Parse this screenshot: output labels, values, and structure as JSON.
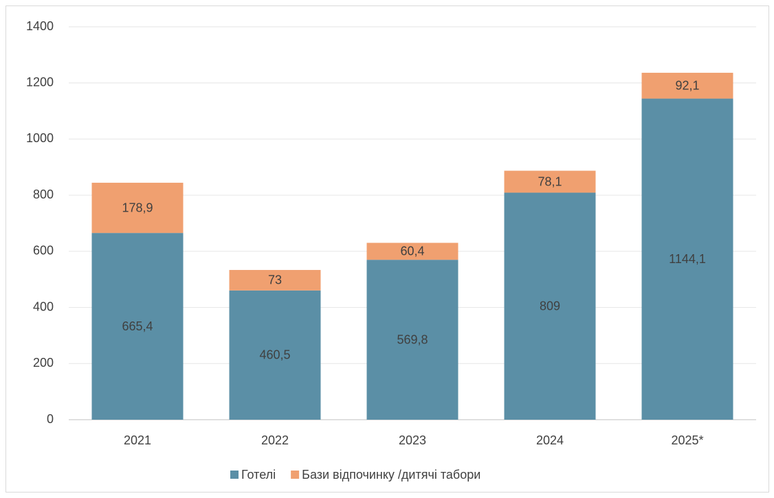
{
  "chart_data": {
    "type": "stacked_bar",
    "categories": [
      "2021",
      "2022",
      "2023",
      "2024",
      "2025*"
    ],
    "series": [
      {
        "name": "Готелі",
        "color": "#5b8fa6",
        "values": [
          665.4,
          460.5,
          569.8,
          809,
          1144.1
        ],
        "value_labels": [
          "665,4",
          "460,5",
          "569,8",
          "809",
          "1144,1"
        ]
      },
      {
        "name": "Бази відпочинку /дитячі табори",
        "color": "#f0a070",
        "values": [
          178.9,
          73,
          60.4,
          78.1,
          92.1
        ],
        "value_labels": [
          "178,9",
          "73",
          "60,4",
          "78,1",
          "92,1"
        ]
      }
    ],
    "ylim": [
      0,
      1400
    ],
    "yticks": [
      0,
      200,
      400,
      600,
      800,
      1000,
      1200,
      1400
    ],
    "grid": true,
    "legend": "bottom"
  }
}
